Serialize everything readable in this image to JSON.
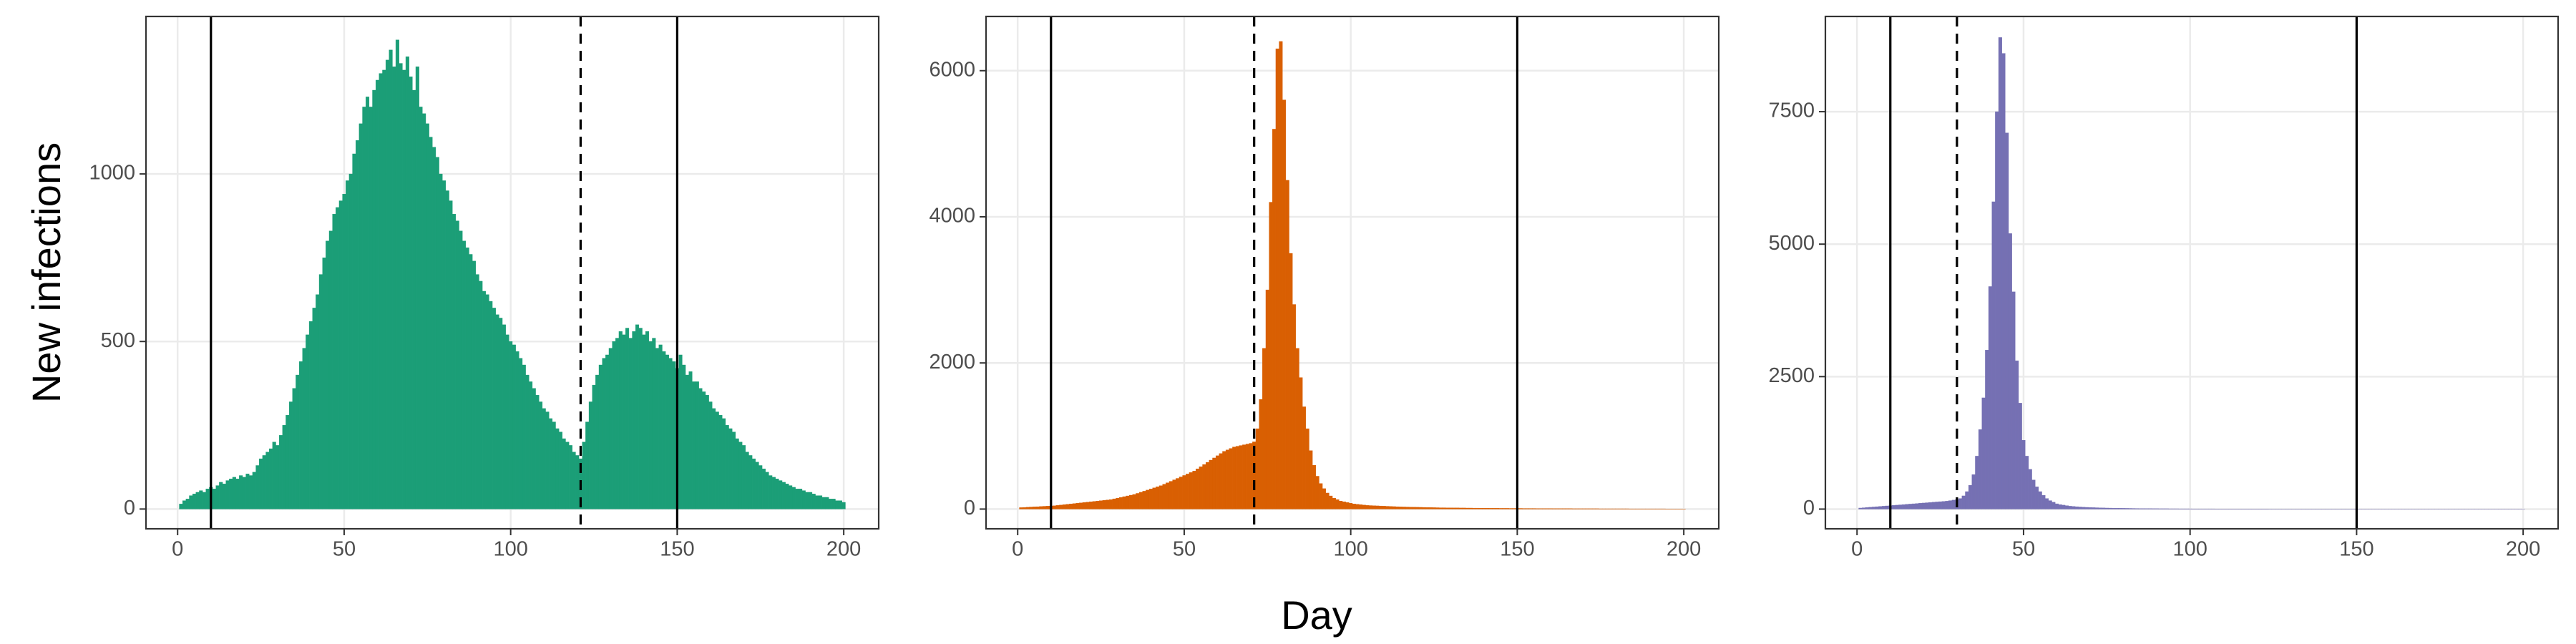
{
  "chart_data": [
    {
      "type": "bar",
      "ylabel": "New infections",
      "color": "#1b9e77",
      "x": [
        1,
        2,
        3,
        4,
        5,
        6,
        7,
        8,
        9,
        10,
        11,
        12,
        13,
        14,
        15,
        16,
        17,
        18,
        19,
        20,
        21,
        22,
        23,
        24,
        25,
        26,
        27,
        28,
        29,
        30,
        31,
        32,
        33,
        34,
        35,
        36,
        37,
        38,
        39,
        40,
        41,
        42,
        43,
        44,
        45,
        46,
        47,
        48,
        49,
        50,
        51,
        52,
        53,
        54,
        55,
        56,
        57,
        58,
        59,
        60,
        61,
        62,
        63,
        64,
        65,
        66,
        67,
        68,
        69,
        70,
        71,
        72,
        73,
        74,
        75,
        76,
        77,
        78,
        79,
        80,
        81,
        82,
        83,
        84,
        85,
        86,
        87,
        88,
        89,
        90,
        91,
        92,
        93,
        94,
        95,
        96,
        97,
        98,
        99,
        100,
        101,
        102,
        103,
        104,
        105,
        106,
        107,
        108,
        109,
        110,
        111,
        112,
        113,
        114,
        115,
        116,
        117,
        118,
        119,
        120,
        121,
        122,
        123,
        124,
        125,
        126,
        127,
        128,
        129,
        130,
        131,
        132,
        133,
        134,
        135,
        136,
        137,
        138,
        139,
        140,
        141,
        142,
        143,
        144,
        145,
        146,
        147,
        148,
        149,
        150,
        151,
        152,
        153,
        154,
        155,
        156,
        157,
        158,
        159,
        160,
        161,
        162,
        163,
        164,
        165,
        166,
        167,
        168,
        169,
        170,
        171,
        172,
        173,
        174,
        175,
        176,
        177,
        178,
        179,
        180,
        181,
        182,
        183,
        184,
        185,
        186,
        187,
        188,
        189,
        190,
        191,
        192,
        193,
        194,
        195,
        196,
        197,
        198,
        199,
        200
      ],
      "values": [
        15,
        25,
        30,
        40,
        45,
        50,
        55,
        50,
        60,
        65,
        60,
        70,
        80,
        75,
        85,
        90,
        95,
        90,
        100,
        95,
        105,
        100,
        110,
        130,
        150,
        160,
        170,
        180,
        200,
        190,
        220,
        250,
        280,
        320,
        360,
        400,
        440,
        480,
        520,
        560,
        600,
        640,
        700,
        750,
        800,
        830,
        880,
        900,
        920,
        940,
        980,
        1000,
        1060,
        1100,
        1150,
        1200,
        1230,
        1200,
        1250,
        1280,
        1300,
        1310,
        1340,
        1370,
        1320,
        1400,
        1330,
        1310,
        1350,
        1290,
        1250,
        1320,
        1200,
        1180,
        1150,
        1110,
        1080,
        1050,
        1000,
        980,
        950,
        920,
        880,
        860,
        830,
        800,
        780,
        760,
        740,
        700,
        680,
        650,
        640,
        620,
        600,
        580,
        570,
        550,
        520,
        500,
        490,
        470,
        450,
        430,
        400,
        380,
        360,
        340,
        320,
        300,
        290,
        270,
        260,
        240,
        230,
        210,
        200,
        190,
        170,
        160,
        150,
        200,
        260,
        320,
        370,
        400,
        430,
        450,
        460,
        480,
        500,
        510,
        530,
        520,
        540,
        510,
        530,
        550,
        540,
        520,
        530,
        500,
        510,
        480,
        490,
        470,
        460,
        450,
        440,
        420,
        460,
        430,
        400,
        410,
        380,
        380,
        360,
        350,
        340,
        320,
        300,
        290,
        280,
        270,
        250,
        240,
        230,
        210,
        200,
        190,
        170,
        160,
        150,
        140,
        130,
        120,
        110,
        100,
        95,
        90,
        85,
        80,
        75,
        70,
        65,
        60,
        60,
        55,
        50,
        50,
        45,
        40,
        40,
        35,
        35,
        30,
        30,
        25,
        25,
        20
      ],
      "xlim": [
        -9.5,
        210.5
      ],
      "xticks": [
        0,
        50,
        100,
        150,
        200
      ],
      "ylim": [
        -59,
        1470
      ],
      "yticks": [
        0,
        500,
        1000
      ],
      "vlines": [
        10,
        150
      ],
      "dashed_vlines": [
        121
      ],
      "grid": true
    },
    {
      "type": "bar",
      "xlabel": "Day",
      "color": "#d95f02",
      "x": [
        1,
        2,
        3,
        4,
        5,
        6,
        7,
        8,
        9,
        10,
        11,
        12,
        13,
        14,
        15,
        16,
        17,
        18,
        19,
        20,
        21,
        22,
        23,
        24,
        25,
        26,
        27,
        28,
        29,
        30,
        31,
        32,
        33,
        34,
        35,
        36,
        37,
        38,
        39,
        40,
        41,
        42,
        43,
        44,
        45,
        46,
        47,
        48,
        49,
        50,
        51,
        52,
        53,
        54,
        55,
        56,
        57,
        58,
        59,
        60,
        61,
        62,
        63,
        64,
        65,
        66,
        67,
        68,
        69,
        70,
        71,
        72,
        73,
        74,
        75,
        76,
        77,
        78,
        79,
        80,
        81,
        82,
        83,
        84,
        85,
        86,
        87,
        88,
        89,
        90,
        91,
        92,
        93,
        94,
        95,
        96,
        97,
        98,
        99,
        100,
        101,
        102,
        103,
        104,
        105,
        106,
        107,
        108,
        109,
        110,
        111,
        112,
        113,
        114,
        115,
        116,
        117,
        118,
        119,
        120,
        121,
        122,
        123,
        124,
        125,
        126,
        127,
        128,
        129,
        130,
        131,
        132,
        133,
        134,
        135,
        136,
        137,
        138,
        139,
        140,
        141,
        142,
        143,
        144,
        145,
        146,
        147,
        148,
        149,
        150,
        151,
        152,
        153,
        154,
        155,
        156,
        157,
        158,
        159,
        160,
        161,
        162,
        163,
        164,
        165,
        166,
        167,
        168,
        169,
        170,
        171,
        172,
        173,
        174,
        175,
        176,
        177,
        178,
        179,
        180,
        181,
        182,
        183,
        184,
        185,
        186,
        187,
        188,
        189,
        190,
        191,
        192,
        193,
        194,
        195,
        196,
        197,
        198,
        199,
        200
      ],
      "values": [
        20,
        22,
        25,
        28,
        30,
        32,
        35,
        38,
        40,
        42,
        45,
        50,
        55,
        60,
        65,
        70,
        75,
        80,
        85,
        90,
        95,
        100,
        105,
        110,
        115,
        120,
        125,
        130,
        140,
        150,
        160,
        170,
        180,
        190,
        200,
        215,
        230,
        245,
        260,
        275,
        290,
        305,
        320,
        340,
        360,
        380,
        400,
        420,
        440,
        460,
        480,
        500,
        520,
        550,
        580,
        610,
        640,
        670,
        700,
        730,
        760,
        790,
        810,
        830,
        850,
        860,
        870,
        880,
        890,
        900,
        920,
        1100,
        1500,
        2200,
        3000,
        4200,
        5200,
        6300,
        6400,
        5600,
        4500,
        3500,
        2800,
        2200,
        1800,
        1400,
        1100,
        800,
        600,
        450,
        350,
        280,
        220,
        180,
        150,
        130,
        110,
        100,
        90,
        80,
        70,
        65,
        60,
        55,
        50,
        48,
        46,
        44,
        42,
        40,
        38,
        36,
        34,
        32,
        30,
        29,
        28,
        27,
        26,
        25,
        24,
        23,
        22,
        21,
        20,
        19,
        18,
        18,
        17,
        17,
        16,
        16,
        15,
        15,
        14,
        14,
        13,
        13,
        12,
        12,
        12,
        11,
        11,
        11,
        10,
        10,
        10,
        9,
        9,
        9,
        9,
        8,
        8,
        8,
        8,
        7,
        7,
        7,
        7,
        7,
        6,
        6,
        6,
        6,
        6,
        6,
        5,
        5,
        5,
        5,
        5,
        5,
        5,
        5,
        4,
        4,
        4,
        4,
        4,
        4,
        4,
        4,
        4,
        3,
        3,
        3,
        3,
        3,
        3,
        3,
        3,
        3,
        3,
        3,
        2,
        2,
        2,
        2,
        2,
        2
      ],
      "xlim": [
        -9.5,
        210.5
      ],
      "xticks": [
        0,
        50,
        100,
        150,
        200
      ],
      "ylim": [
        -270,
        6742
      ],
      "yticks": [
        0,
        2000,
        4000,
        6000
      ],
      "vlines": [
        10,
        150
      ],
      "dashed_vlines": [
        71
      ],
      "grid": true
    },
    {
      "type": "bar",
      "color": "#7570b3",
      "x": [
        1,
        2,
        3,
        4,
        5,
        6,
        7,
        8,
        9,
        10,
        11,
        12,
        13,
        14,
        15,
        16,
        17,
        18,
        19,
        20,
        21,
        22,
        23,
        24,
        25,
        26,
        27,
        28,
        29,
        30,
        31,
        32,
        33,
        34,
        35,
        36,
        37,
        38,
        39,
        40,
        41,
        42,
        43,
        44,
        45,
        46,
        47,
        48,
        49,
        50,
        51,
        52,
        53,
        54,
        55,
        56,
        57,
        58,
        59,
        60,
        61,
        62,
        63,
        64,
        65,
        66,
        67,
        68,
        69,
        70,
        71,
        72,
        73,
        74,
        75,
        76,
        77,
        78,
        79,
        80,
        81,
        82,
        83,
        84,
        85,
        86,
        87,
        88,
        89,
        90,
        91,
        92,
        93,
        94,
        95,
        96,
        97,
        98,
        99,
        100,
        101,
        102,
        103,
        104,
        105,
        106,
        107,
        108,
        109,
        110,
        111,
        112,
        113,
        114,
        115,
        116,
        117,
        118,
        119,
        120,
        121,
        122,
        123,
        124,
        125,
        126,
        127,
        128,
        129,
        130,
        131,
        132,
        133,
        134,
        135,
        136,
        137,
        138,
        139,
        140,
        141,
        142,
        143,
        144,
        145,
        146,
        147,
        148,
        149,
        150,
        151,
        152,
        153,
        154,
        155,
        156,
        157,
        158,
        159,
        160,
        161,
        162,
        163,
        164,
        165,
        166,
        167,
        168,
        169,
        170,
        171,
        172,
        173,
        174,
        175,
        176,
        177,
        178,
        179,
        180,
        181,
        182,
        183,
        184,
        185,
        186,
        187,
        188,
        189,
        190,
        191,
        192,
        193,
        194,
        195,
        196,
        197,
        198,
        199,
        200
      ],
      "values": [
        20,
        25,
        30,
        35,
        40,
        45,
        50,
        55,
        60,
        65,
        70,
        75,
        80,
        85,
        90,
        95,
        100,
        105,
        110,
        115,
        120,
        125,
        130,
        135,
        140,
        145,
        150,
        160,
        170,
        180,
        200,
        250,
        330,
        450,
        650,
        1000,
        1500,
        2100,
        3000,
        4200,
        5800,
        7500,
        8900,
        8600,
        7100,
        5200,
        4100,
        2800,
        2000,
        1300,
        1000,
        750,
        550,
        420,
        330,
        260,
        200,
        160,
        130,
        100,
        85,
        75,
        65,
        55,
        50,
        45,
        40,
        36,
        33,
        30,
        28,
        26,
        24,
        22,
        20,
        19,
        18,
        17,
        16,
        15,
        14,
        13,
        12,
        11,
        10,
        10,
        9,
        9,
        8,
        8,
        7,
        7,
        7,
        6,
        6,
        6,
        5,
        5,
        5,
        5,
        4,
        4,
        4,
        4,
        4,
        4,
        4,
        3,
        3,
        3,
        3,
        3,
        3,
        3,
        3,
        3,
        3,
        3,
        3,
        3,
        3,
        3,
        3,
        2,
        2,
        2,
        2,
        2,
        2,
        2,
        2,
        2,
        2,
        2,
        2,
        2,
        2,
        2,
        2,
        2,
        2,
        2,
        2,
        2,
        2,
        2,
        2,
        2,
        2,
        2,
        1,
        1,
        1,
        1,
        1,
        1,
        1,
        1,
        1,
        1,
        1,
        1,
        1,
        1,
        1,
        1,
        1,
        1,
        1,
        1,
        1,
        1,
        1,
        1,
        1,
        1,
        1,
        1,
        1,
        1,
        1,
        1,
        1,
        1,
        1,
        1,
        1,
        1,
        1,
        1,
        1,
        1,
        1,
        1,
        1,
        1,
        1,
        1,
        1,
        1
      ],
      "xlim": [
        -9.5,
        210.5
      ],
      "xticks": [
        0,
        50,
        100,
        150,
        200
      ],
      "ylim": [
        -372,
        9297
      ],
      "yticks": [
        0,
        2500,
        5000,
        7500
      ],
      "vlines": [
        10,
        150
      ],
      "dashed_vlines": [
        30
      ],
      "grid": true
    }
  ]
}
